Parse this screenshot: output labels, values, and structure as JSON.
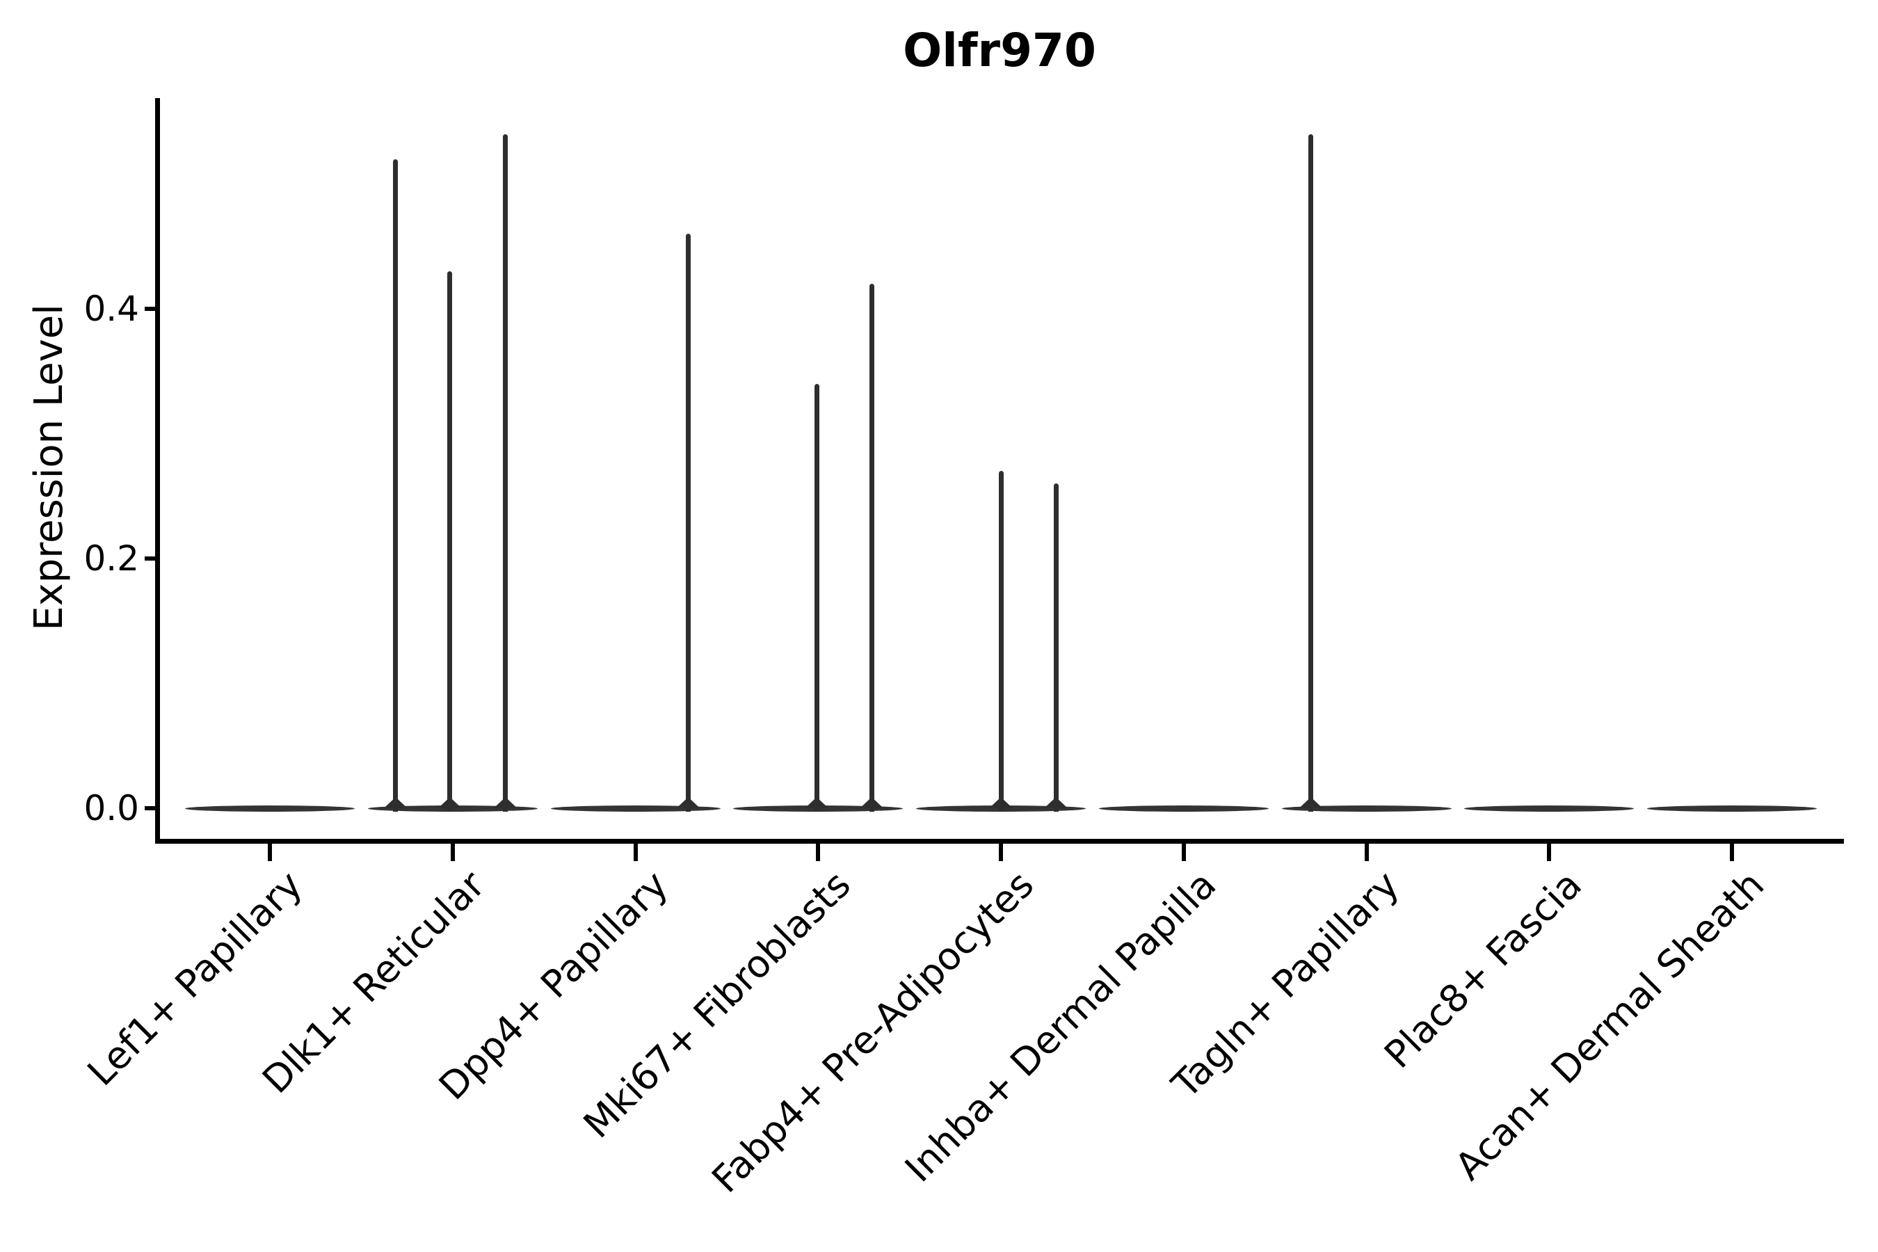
{
  "chart_data": {
    "type": "violin",
    "title": "Olfr970",
    "xlabel": "",
    "ylabel": "Expression Level",
    "ylim": [
      -0.027,
      0.569
    ],
    "grid": false,
    "legend": null,
    "yticks": [
      {
        "label": "0.0",
        "value": 0.0
      },
      {
        "label": "0.2",
        "value": 0.2
      },
      {
        "label": "0.4",
        "value": 0.4
      }
    ],
    "categories": [
      "Lef1+ Papillary",
      "Dlk1+ Reticular",
      "Dpp4+ Papillary",
      "Mki67+ Fibroblasts",
      "Fabp4+ Pre-Adipocytes",
      "Inhba+ Dermal Papilla",
      "Tagln+ Papillary",
      "Plac8+ Fascia",
      "Acan+ Dermal Sheath"
    ],
    "series": [
      {
        "name": "Lef1+ Papillary",
        "baseline_value": 0.0,
        "max_expression": 0.0,
        "spikes": []
      },
      {
        "name": "Dlk1+ Reticular",
        "baseline_value": 0.0,
        "max_expression": 0.54,
        "spikes": [
          {
            "offset": -0.312,
            "value": 0.52
          },
          {
            "offset": -0.015,
            "value": 0.43
          },
          {
            "offset": 0.289,
            "value": 0.54
          }
        ]
      },
      {
        "name": "Dpp4+ Papillary",
        "baseline_value": 0.0,
        "max_expression": 0.46,
        "spikes": [
          {
            "offset": 0.289,
            "value": 0.46
          }
        ]
      },
      {
        "name": "Mki67+ Fibroblasts",
        "baseline_value": 0.0,
        "max_expression": 0.42,
        "spikes": [
          {
            "offset": -0.008,
            "value": 0.34
          },
          {
            "offset": 0.293,
            "value": 0.42
          }
        ]
      },
      {
        "name": "Fabp4+ Pre-Adipocytes",
        "baseline_value": 0.0,
        "max_expression": 0.27,
        "spikes": [
          {
            "offset": 0.0,
            "value": 0.27
          },
          {
            "offset": 0.301,
            "value": 0.26
          }
        ]
      },
      {
        "name": "Inhba+ Dermal Papilla",
        "baseline_value": 0.0,
        "max_expression": 0.0,
        "spikes": []
      },
      {
        "name": "Tagln+ Papillary",
        "baseline_value": 0.0,
        "max_expression": 0.54,
        "spikes": [
          {
            "offset": -0.304,
            "value": 0.54
          }
        ]
      },
      {
        "name": "Plac8+ Fascia",
        "baseline_value": 0.0,
        "max_expression": 0.0,
        "spikes": []
      },
      {
        "name": "Acan+ Dermal Sheath",
        "baseline_value": 0.0,
        "max_expression": 0.0,
        "spikes": []
      }
    ],
    "colors": {
      "violin": "#343434",
      "spike": "#2e2e2e",
      "axis": "#000000",
      "text": "#000000",
      "background": "#ffffff"
    }
  }
}
